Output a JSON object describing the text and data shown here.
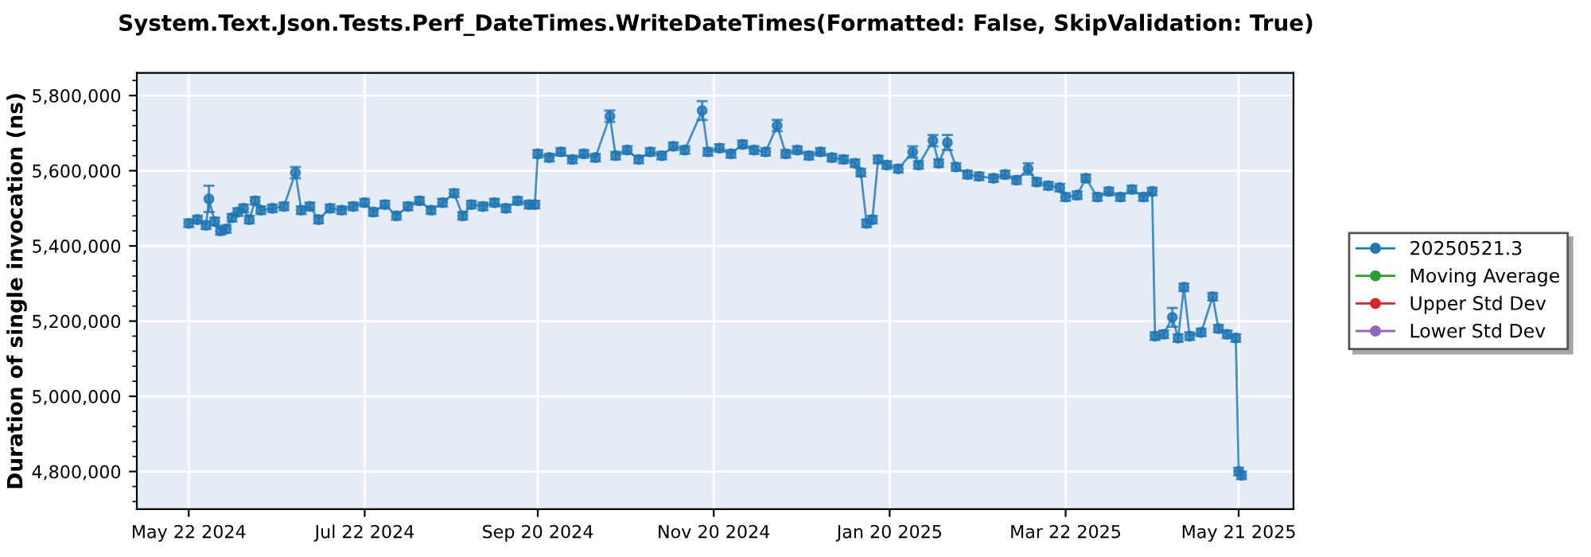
{
  "chart_data": {
    "type": "line",
    "title": "System.Text.Json.Tests.Perf_DateTimes.WriteDateTimes(Formatted: False, SkipValidation: True)",
    "ylabel": "Duration of single invocation (ns)",
    "x": [
      "2024-05-22",
      "2024-05-25",
      "2024-05-28",
      "2024-05-29",
      "2024-05-31",
      "2024-06-02",
      "2024-06-04",
      "2024-06-06",
      "2024-06-08",
      "2024-06-10",
      "2024-06-12",
      "2024-06-14",
      "2024-06-16",
      "2024-06-20",
      "2024-06-24",
      "2024-06-28",
      "2024-06-30",
      "2024-07-03",
      "2024-07-06",
      "2024-07-10",
      "2024-07-14",
      "2024-07-18",
      "2024-07-22",
      "2024-07-25",
      "2024-07-29",
      "2024-08-02",
      "2024-08-06",
      "2024-08-10",
      "2024-08-14",
      "2024-08-18",
      "2024-08-22",
      "2024-08-25",
      "2024-08-28",
      "2024-09-01",
      "2024-09-05",
      "2024-09-09",
      "2024-09-13",
      "2024-09-17",
      "2024-09-19",
      "2024-09-20",
      "2024-09-24",
      "2024-09-28",
      "2024-10-02",
      "2024-10-06",
      "2024-10-10",
      "2024-10-15",
      "2024-10-17",
      "2024-10-21",
      "2024-10-25",
      "2024-10-29",
      "2024-11-02",
      "2024-11-06",
      "2024-11-10",
      "2024-11-16",
      "2024-11-18",
      "2024-11-22",
      "2024-11-26",
      "2024-11-30",
      "2024-12-04",
      "2024-12-08",
      "2024-12-12",
      "2024-12-15",
      "2024-12-19",
      "2024-12-23",
      "2024-12-27",
      "2024-12-31",
      "2025-01-04",
      "2025-01-08",
      "2025-01-10",
      "2025-01-12",
      "2025-01-14",
      "2025-01-16",
      "2025-01-19",
      "2025-01-23",
      "2025-01-28",
      "2025-01-30",
      "2025-02-04",
      "2025-02-06",
      "2025-02-09",
      "2025-02-12",
      "2025-02-16",
      "2025-02-20",
      "2025-02-25",
      "2025-03-01",
      "2025-03-05",
      "2025-03-09",
      "2025-03-12",
      "2025-03-16",
      "2025-03-20",
      "2025-03-22",
      "2025-03-26",
      "2025-03-29",
      "2025-04-02",
      "2025-04-06",
      "2025-04-10",
      "2025-04-14",
      "2025-04-18",
      "2025-04-21",
      "2025-04-22",
      "2025-04-25",
      "2025-04-28",
      "2025-04-30",
      "2025-05-02",
      "2025-05-04",
      "2025-05-08",
      "2025-05-12",
      "2025-05-14",
      "2025-05-17",
      "2025-05-20",
      "2025-05-21",
      "2025-05-22"
    ],
    "series": [
      {
        "name": "20250521.3",
        "color": "#1f77b4",
        "values": [
          5460000,
          5470000,
          5455000,
          5525000,
          5465000,
          5440000,
          5445000,
          5475000,
          5490000,
          5500000,
          5470000,
          5520000,
          5495000,
          5500000,
          5505000,
          5595000,
          5495000,
          5505000,
          5470000,
          5500000,
          5495000,
          5505000,
          5515000,
          5490000,
          5510000,
          5480000,
          5505000,
          5520000,
          5495000,
          5515000,
          5540000,
          5480000,
          5510000,
          5505000,
          5515000,
          5500000,
          5520000,
          5510000,
          5510000,
          5645000,
          5635000,
          5650000,
          5630000,
          5645000,
          5635000,
          5745000,
          5640000,
          5655000,
          5630000,
          5650000,
          5640000,
          5665000,
          5655000,
          5760000,
          5650000,
          5660000,
          5645000,
          5670000,
          5655000,
          5650000,
          5720000,
          5645000,
          5655000,
          5640000,
          5650000,
          5635000,
          5630000,
          5620000,
          5595000,
          5460000,
          5470000,
          5630000,
          5615000,
          5605000,
          5650000,
          5615000,
          5680000,
          5620000,
          5675000,
          5610000,
          5590000,
          5585000,
          5580000,
          5590000,
          5575000,
          5605000,
          5570000,
          5560000,
          5555000,
          5530000,
          5535000,
          5580000,
          5530000,
          5545000,
          5530000,
          5550000,
          5530000,
          5545000,
          5160000,
          5165000,
          5210000,
          5155000,
          5290000,
          5160000,
          5170000,
          5265000,
          5180000,
          5165000,
          5155000,
          4800000,
          4790000
        ],
        "errors": [
          10000,
          10000,
          10000,
          35000,
          10000,
          10000,
          10000,
          10000,
          10000,
          10000,
          10000,
          10000,
          10000,
          10000,
          10000,
          15000,
          10000,
          10000,
          10000,
          10000,
          10000,
          10000,
          10000,
          10000,
          10000,
          10000,
          10000,
          10000,
          10000,
          10000,
          10000,
          10000,
          10000,
          10000,
          10000,
          10000,
          10000,
          10000,
          10000,
          10000,
          10000,
          10000,
          10000,
          10000,
          10000,
          15000,
          10000,
          10000,
          10000,
          10000,
          10000,
          10000,
          10000,
          25000,
          10000,
          10000,
          10000,
          10000,
          10000,
          10000,
          15000,
          10000,
          10000,
          10000,
          10000,
          10000,
          10000,
          10000,
          10000,
          10000,
          10000,
          10000,
          10000,
          10000,
          15000,
          10000,
          15000,
          10000,
          20000,
          10000,
          10000,
          10000,
          10000,
          10000,
          10000,
          15000,
          10000,
          10000,
          10000,
          10000,
          10000,
          10000,
          10000,
          10000,
          10000,
          10000,
          10000,
          10000,
          10000,
          10000,
          25000,
          10000,
          10000,
          10000,
          10000,
          10000,
          10000,
          10000,
          10000,
          10000,
          10000
        ]
      },
      {
        "name": "Moving Average",
        "color": "#2ca02c",
        "values": [
          null,
          null,
          null,
          null,
          null,
          null,
          null,
          null,
          null,
          null,
          null,
          null,
          null,
          null,
          null,
          null,
          null,
          null,
          null,
          null,
          null,
          null,
          null,
          null,
          null,
          null,
          null,
          null,
          null,
          null,
          null,
          null,
          null,
          null,
          null,
          null,
          null,
          null,
          null,
          null,
          null,
          null,
          null,
          null,
          null,
          null,
          null,
          null,
          null,
          null,
          null,
          null,
          null,
          null,
          null,
          null,
          null,
          null,
          null,
          null,
          null,
          null,
          null,
          null,
          null,
          null,
          null,
          null,
          null,
          null,
          null,
          null,
          null,
          null,
          null,
          null,
          null,
          null,
          null,
          null,
          null,
          null,
          null,
          null,
          null,
          null,
          null,
          null,
          null,
          null,
          null,
          null,
          null,
          null,
          null,
          null,
          null,
          null,
          null,
          null,
          null,
          null,
          null,
          null,
          null,
          null,
          null,
          null,
          null,
          null,
          null
        ]
      },
      {
        "name": "Upper Std Dev",
        "color": "#d62728",
        "values": [
          null,
          null,
          null,
          null,
          null,
          null,
          null,
          null,
          null,
          null,
          null,
          null,
          null,
          null,
          null,
          null,
          null,
          null,
          null,
          null,
          null,
          null,
          null,
          null,
          null,
          null,
          null,
          null,
          null,
          null,
          null,
          null,
          null,
          null,
          null,
          null,
          null,
          null,
          null,
          null,
          null,
          null,
          null,
          null,
          null,
          null,
          null,
          null,
          null,
          null,
          null,
          null,
          null,
          null,
          null,
          null,
          null,
          null,
          null,
          null,
          null,
          null,
          null,
          null,
          null,
          null,
          null,
          null,
          null,
          null,
          null,
          null,
          null,
          null,
          null,
          null,
          null,
          null,
          null,
          null,
          null,
          null,
          null,
          null,
          null,
          null,
          null,
          null,
          null,
          null,
          null,
          null,
          null,
          null,
          null,
          null,
          null,
          null,
          null,
          null,
          null,
          null,
          null,
          null,
          null,
          null,
          null,
          null,
          null,
          null,
          null
        ]
      },
      {
        "name": "Lower Std Dev",
        "color": "#9467bd",
        "values": [
          null,
          null,
          null,
          null,
          null,
          null,
          null,
          null,
          null,
          null,
          null,
          null,
          null,
          null,
          null,
          null,
          null,
          null,
          null,
          null,
          null,
          null,
          null,
          null,
          null,
          null,
          null,
          null,
          null,
          null,
          null,
          null,
          null,
          null,
          null,
          null,
          null,
          null,
          null,
          null,
          null,
          null,
          null,
          null,
          null,
          null,
          null,
          null,
          null,
          null,
          null,
          null,
          null,
          null,
          null,
          null,
          null,
          null,
          null,
          null,
          null,
          null,
          null,
          null,
          null,
          null,
          null,
          null,
          null,
          null,
          null,
          null,
          null,
          null,
          null,
          null,
          null,
          null,
          null,
          null,
          null,
          null,
          null,
          null,
          null,
          null,
          null,
          null,
          null,
          null,
          null,
          null,
          null,
          null,
          null,
          null,
          null,
          null,
          null,
          null,
          null,
          null,
          null,
          null,
          null,
          null,
          null,
          null,
          null,
          null,
          null
        ]
      }
    ],
    "xlim": [
      "2024-05-04",
      "2025-06-09"
    ],
    "xticks": [
      {
        "value": "2024-05-22",
        "label": "May 22 2024"
      },
      {
        "value": "2024-07-22",
        "label": "Jul 22 2024"
      },
      {
        "value": "2024-09-20",
        "label": "Sep 20 2024"
      },
      {
        "value": "2024-11-20",
        "label": "Nov 20 2024"
      },
      {
        "value": "2025-01-20",
        "label": "Jan 20 2025"
      },
      {
        "value": "2025-03-22",
        "label": "Mar 22 2025"
      },
      {
        "value": "2025-05-21",
        "label": "May 21 2025"
      }
    ],
    "ylim": [
      4700000,
      5860000
    ],
    "yticks": [
      {
        "value": 4800000,
        "label": "4,800,000"
      },
      {
        "value": 5000000,
        "label": "5,000,000"
      },
      {
        "value": 5200000,
        "label": "5,200,000"
      },
      {
        "value": 5400000,
        "label": "5,400,000"
      },
      {
        "value": 5600000,
        "label": "5,600,000"
      },
      {
        "value": 5800000,
        "label": "5,800,000"
      }
    ],
    "grid": true,
    "legend": "right",
    "marker": "circle",
    "line_style": "solid"
  }
}
